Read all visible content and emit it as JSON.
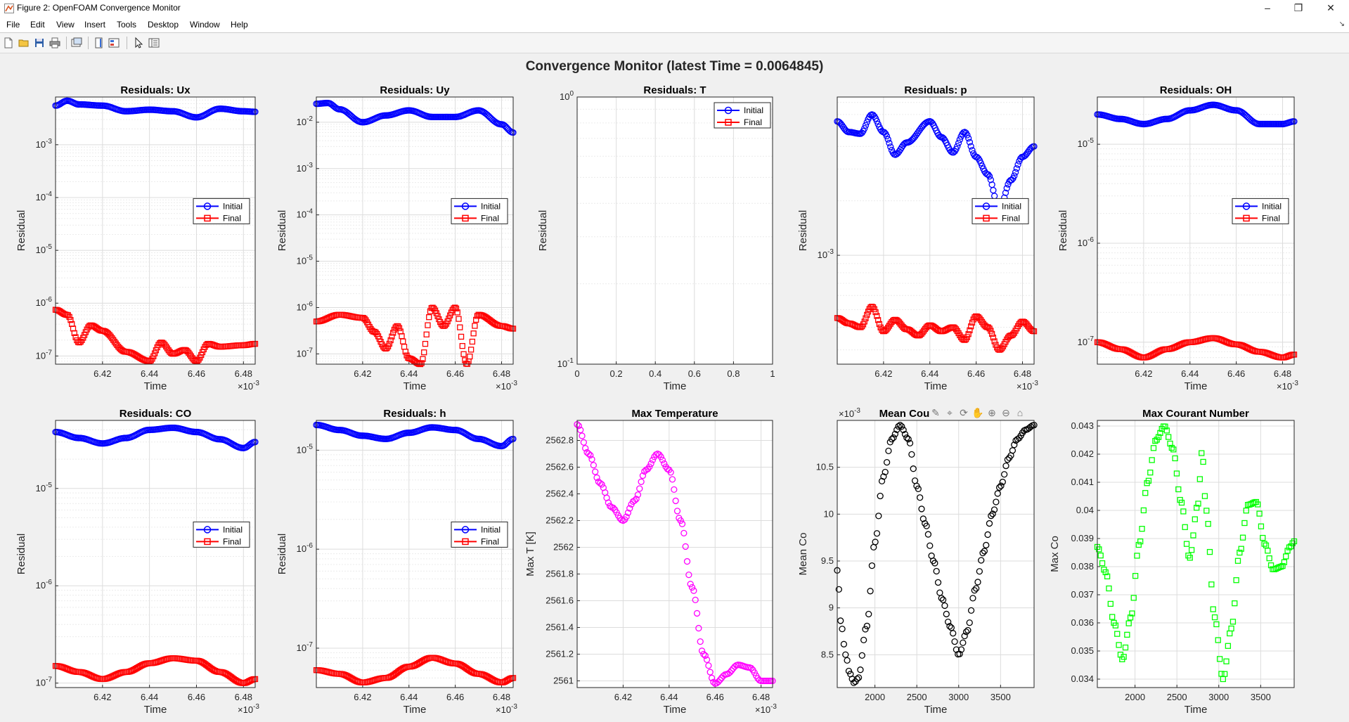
{
  "window": {
    "title": "Figure 2: OpenFOAM Convergence Monitor"
  },
  "menu": [
    "File",
    "Edit",
    "View",
    "Insert",
    "Tools",
    "Desktop",
    "Window",
    "Help"
  ],
  "toolbar_icons": [
    "new-figure-icon",
    "open-file-icon",
    "save-icon",
    "print-icon",
    "link-plot-icon",
    "colorbar-icon",
    "legend-icon",
    "pointer-icon",
    "property-inspector-icon"
  ],
  "figure": {
    "title": "Convergence Monitor (latest Time = 0.0064845)"
  },
  "colors": {
    "initial": "#0000ff",
    "final": "#ff0000",
    "maxT": "#ff00ff",
    "meanCo": "#000000",
    "maxCo": "#00ff00"
  },
  "axes_toolbar_icons": [
    "brush-icon",
    "data-tips-icon",
    "rotate-icon",
    "pan-icon",
    "zoom-in-icon",
    "zoom-out-icon",
    "restore-view-icon"
  ],
  "chart_data": [
    {
      "type": "scatter",
      "title": "Residuals: Ux",
      "xlabel": "Time",
      "ylabel": "Residual",
      "yscale": "log",
      "xlim": [
        6.4,
        6.485
      ],
      "ylim": [
        7e-08,
        0.008
      ],
      "xticks": [
        6.42,
        6.44,
        6.46,
        6.48
      ],
      "xtick_labels": [
        "6.42",
        "6.44",
        "6.46",
        "6.48"
      ],
      "x_exponent": "×10^-3",
      "yticks": [
        1e-07,
        1e-06,
        1e-05,
        0.0001,
        0.001
      ],
      "ytick_labels": [
        "10^-7",
        "10^-6",
        "10^-5",
        "10^-4",
        "10^-3"
      ],
      "legend": [
        "Initial",
        "Final"
      ],
      "legend_position": "right-middle",
      "grid": true,
      "series": [
        {
          "name": "Initial",
          "marker": "o",
          "x": [
            6.4,
            6.405,
            6.41,
            6.42,
            6.43,
            6.44,
            6.45,
            6.46,
            6.47,
            6.48,
            6.485
          ],
          "y": [
            0.0055,
            0.0068,
            0.0058,
            0.0055,
            0.0043,
            0.0046,
            0.0043,
            0.0033,
            0.0048,
            0.0043,
            0.0042
          ]
        },
        {
          "name": "Final",
          "marker": "s",
          "x": [
            6.4,
            6.405,
            6.41,
            6.415,
            6.42,
            6.43,
            6.44,
            6.445,
            6.45,
            6.455,
            6.46,
            6.465,
            6.47,
            6.48,
            6.485
          ],
          "y": [
            7.5e-07,
            6e-07,
            1.8e-07,
            3.8e-07,
            3e-07,
            1.2e-07,
            8e-08,
            1.8e-07,
            1.1e-07,
            1.3e-07,
            8e-08,
            1.7e-07,
            1.5e-07,
            1.6e-07,
            1.7e-07
          ]
        }
      ]
    },
    {
      "type": "scatter",
      "title": "Residuals: Uy",
      "xlabel": "Time",
      "ylabel": "Residual",
      "yscale": "log",
      "xlim": [
        6.4,
        6.485
      ],
      "ylim": [
        6e-08,
        0.035
      ],
      "xticks": [
        6.42,
        6.44,
        6.46,
        6.48
      ],
      "xtick_labels": [
        "6.42",
        "6.44",
        "6.46",
        "6.48"
      ],
      "x_exponent": "×10^-3",
      "yticks": [
        1e-07,
        1e-06,
        1e-05,
        0.0001,
        0.001,
        0.01
      ],
      "ytick_labels": [
        "10^-7",
        "10^-6",
        "10^-5",
        "10^-4",
        "10^-3",
        "10^-2"
      ],
      "legend": [
        "Initial",
        "Final"
      ],
      "legend_position": "right-middle",
      "grid": true,
      "series": [
        {
          "name": "Initial",
          "marker": "o",
          "x": [
            6.4,
            6.405,
            6.41,
            6.42,
            6.43,
            6.44,
            6.45,
            6.46,
            6.47,
            6.48,
            6.485
          ],
          "y": [
            0.025,
            0.026,
            0.019,
            0.01,
            0.014,
            0.018,
            0.013,
            0.013,
            0.018,
            0.009,
            0.006
          ]
        },
        {
          "name": "Final",
          "marker": "s",
          "x": [
            6.4,
            6.41,
            6.42,
            6.425,
            6.43,
            6.435,
            6.44,
            6.445,
            6.45,
            6.455,
            6.46,
            6.465,
            6.47,
            6.48,
            6.485
          ],
          "y": [
            5e-07,
            7e-07,
            6e-07,
            3e-07,
            1.3e-07,
            4e-07,
            8e-08,
            6e-08,
            1e-06,
            4e-07,
            1e-06,
            6e-08,
            7e-07,
            4e-07,
            3.5e-07
          ]
        }
      ]
    },
    {
      "type": "scatter",
      "title": "Residuals: T",
      "xlabel": "Time",
      "ylabel": "Residual",
      "yscale": "log",
      "xlim": [
        0,
        1
      ],
      "ylim": [
        0.1,
        1
      ],
      "xticks": [
        0,
        0.2,
        0.4,
        0.6,
        0.8,
        1
      ],
      "xtick_labels": [
        "0",
        "0.2",
        "0.4",
        "0.6",
        "0.8",
        "1"
      ],
      "yticks": [
        0.1,
        1
      ],
      "ytick_labels": [
        "10^-1",
        "10^0"
      ],
      "legend": [
        "Initial",
        "Final"
      ],
      "legend_position": "top-right",
      "grid": true,
      "series": []
    },
    {
      "type": "scatter",
      "title": "Residuals: p",
      "xlabel": "Time",
      "ylabel": "Residual",
      "yscale": "log",
      "xlim": [
        6.4,
        6.485
      ],
      "ylim": [
        0.00025,
        0.0075
      ],
      "xticks": [
        6.42,
        6.44,
        6.46,
        6.48
      ],
      "xtick_labels": [
        "6.42",
        "6.44",
        "6.46",
        "6.48"
      ],
      "x_exponent": "×10^-3",
      "yticks": [
        0.001
      ],
      "ytick_labels": [
        "10^-3"
      ],
      "legend": [
        "Initial",
        "Final"
      ],
      "legend_position": "right-middle",
      "grid": true,
      "series": [
        {
          "name": "Initial",
          "marker": "o",
          "x": [
            6.4,
            6.405,
            6.41,
            6.415,
            6.42,
            6.425,
            6.43,
            6.44,
            6.445,
            6.45,
            6.455,
            6.46,
            6.465,
            6.47,
            6.475,
            6.48,
            6.485
          ],
          "y": [
            0.0055,
            0.0048,
            0.0047,
            0.006,
            0.0048,
            0.0036,
            0.0042,
            0.0055,
            0.0045,
            0.0037,
            0.0048,
            0.0035,
            0.0028,
            0.0018,
            0.0026,
            0.0035,
            0.004
          ]
        },
        {
          "name": "Final",
          "marker": "s",
          "x": [
            6.4,
            6.405,
            6.41,
            6.415,
            6.42,
            6.425,
            6.43,
            6.435,
            6.44,
            6.445,
            6.45,
            6.455,
            6.46,
            6.465,
            6.47,
            6.475,
            6.48,
            6.485
          ],
          "y": [
            0.00045,
            0.00042,
            0.0004,
            0.00052,
            0.00038,
            0.00044,
            0.00039,
            0.00036,
            0.00041,
            0.00038,
            0.0004,
            0.00034,
            0.00046,
            0.0004,
            0.0003,
            0.00036,
            0.00043,
            0.00038
          ]
        }
      ]
    },
    {
      "type": "scatter",
      "title": "Residuals: OH",
      "xlabel": "Time",
      "ylabel": "Residual",
      "yscale": "log",
      "xlim": [
        6.4,
        6.485
      ],
      "ylim": [
        6e-08,
        3e-05
      ],
      "xticks": [
        6.42,
        6.44,
        6.46,
        6.48
      ],
      "xtick_labels": [
        "6.42",
        "6.44",
        "6.46",
        "6.48"
      ],
      "x_exponent": "×10^-3",
      "yticks": [
        1e-07,
        1e-06,
        1e-05
      ],
      "ytick_labels": [
        "10^-7",
        "10^-6",
        "10^-5"
      ],
      "legend": [
        "Initial",
        "Final"
      ],
      "legend_position": "right-middle",
      "grid": true,
      "series": [
        {
          "name": "Initial",
          "marker": "o",
          "x": [
            6.4,
            6.41,
            6.42,
            6.43,
            6.44,
            6.45,
            6.46,
            6.47,
            6.48,
            6.485
          ],
          "y": [
            2e-05,
            1.8e-05,
            1.6e-05,
            1.8e-05,
            2.2e-05,
            2.5e-05,
            2.2e-05,
            1.6e-05,
            1.6e-05,
            1.7e-05
          ]
        },
        {
          "name": "Final",
          "marker": "s",
          "x": [
            6.4,
            6.41,
            6.42,
            6.43,
            6.44,
            6.45,
            6.46,
            6.47,
            6.48,
            6.485
          ],
          "y": [
            1e-07,
            8.5e-08,
            7e-08,
            8.5e-08,
            1e-07,
            1.1e-07,
            9.5e-08,
            8e-08,
            7e-08,
            7.5e-08
          ]
        }
      ]
    },
    {
      "type": "scatter",
      "title": "Residuals: CO",
      "xlabel": "Time",
      "ylabel": "Residual",
      "yscale": "log",
      "xlim": [
        6.4,
        6.485
      ],
      "ylim": [
        9e-08,
        5e-05
      ],
      "xticks": [
        6.42,
        6.44,
        6.46,
        6.48
      ],
      "xtick_labels": [
        "6.42",
        "6.44",
        "6.46",
        "6.48"
      ],
      "x_exponent": "×10^-3",
      "yticks": [
        1e-07,
        1e-06,
        1e-05
      ],
      "ytick_labels": [
        "10^-7",
        "10^-6",
        "10^-5"
      ],
      "legend": [
        "Initial",
        "Final"
      ],
      "legend_position": "right-middle",
      "grid": true,
      "series": [
        {
          "name": "Initial",
          "marker": "o",
          "x": [
            6.4,
            6.41,
            6.42,
            6.43,
            6.44,
            6.45,
            6.46,
            6.47,
            6.48,
            6.485
          ],
          "y": [
            3.8e-05,
            3.3e-05,
            2.9e-05,
            3.3e-05,
            4e-05,
            4.2e-05,
            3.8e-05,
            3.2e-05,
            2.6e-05,
            3e-05
          ]
        },
        {
          "name": "Final",
          "marker": "s",
          "x": [
            6.4,
            6.41,
            6.42,
            6.43,
            6.44,
            6.45,
            6.46,
            6.47,
            6.48,
            6.485
          ],
          "y": [
            1.5e-07,
            1.3e-07,
            1.1e-07,
            1.3e-07,
            1.6e-07,
            1.8e-07,
            1.7e-07,
            1.3e-07,
            1e-07,
            1.1e-07
          ]
        }
      ]
    },
    {
      "type": "scatter",
      "title": "Residuals: h",
      "xlabel": "Time",
      "ylabel": "Residual",
      "yscale": "log",
      "xlim": [
        6.4,
        6.485
      ],
      "ylim": [
        4e-08,
        2e-05
      ],
      "xticks": [
        6.42,
        6.44,
        6.46,
        6.48
      ],
      "xtick_labels": [
        "6.42",
        "6.44",
        "6.46",
        "6.48"
      ],
      "x_exponent": "×10^-3",
      "yticks": [
        1e-07,
        1e-06,
        1e-05
      ],
      "ytick_labels": [
        "10^-7",
        "10^-6",
        "10^-5"
      ],
      "legend": [
        "Initial",
        "Final"
      ],
      "legend_position": "right-middle",
      "grid": true,
      "series": [
        {
          "name": "Initial",
          "marker": "o",
          "x": [
            6.4,
            6.41,
            6.42,
            6.43,
            6.44,
            6.45,
            6.46,
            6.47,
            6.48,
            6.485
          ],
          "y": [
            1.8e-05,
            1.6e-05,
            1.4e-05,
            1.3e-05,
            1.5e-05,
            1.7e-05,
            1.6e-05,
            1.3e-05,
            1.1e-05,
            1.3e-05
          ]
        },
        {
          "name": "Final",
          "marker": "s",
          "x": [
            6.4,
            6.41,
            6.42,
            6.43,
            6.44,
            6.45,
            6.46,
            6.47,
            6.48,
            6.485
          ],
          "y": [
            6e-08,
            5.5e-08,
            4.5e-08,
            5e-08,
            6.5e-08,
            8e-08,
            7e-08,
            5.5e-08,
            4.5e-08,
            5e-08
          ]
        }
      ]
    },
    {
      "type": "scatter",
      "title": "Max Temperature",
      "xlabel": "Time",
      "ylabel": "Max T [K]",
      "xlim": [
        6.4,
        6.485
      ],
      "ylim": [
        2560.95,
        2562.95
      ],
      "xticks": [
        6.42,
        6.44,
        6.46,
        6.48
      ],
      "xtick_labels": [
        "6.42",
        "6.44",
        "6.46",
        "6.48"
      ],
      "x_exponent": "×10^-3",
      "yticks": [
        2561,
        2561.2,
        2561.4,
        2561.6,
        2561.8,
        2562,
        2562.2,
        2562.4,
        2562.6,
        2562.8
      ],
      "ytick_labels": [
        "2561",
        "2561.2",
        "2561.4",
        "2561.6",
        "2561.8",
        "2562",
        "2562.2",
        "2562.4",
        "2562.6",
        "2562.8"
      ],
      "grid": true,
      "series": [
        {
          "name": "",
          "marker": "o",
          "x": [
            6.4,
            6.405,
            6.41,
            6.415,
            6.42,
            6.425,
            6.43,
            6.435,
            6.44,
            6.445,
            6.45,
            6.455,
            6.46,
            6.465,
            6.47,
            6.475,
            6.48,
            6.485
          ],
          "y": [
            2562.92,
            2562.7,
            2562.48,
            2562.3,
            2562.2,
            2562.35,
            2562.58,
            2562.7,
            2562.58,
            2562.2,
            2561.7,
            2561.2,
            2560.98,
            2561.05,
            2561.12,
            2561.1,
            2561.0,
            2561.0
          ]
        }
      ]
    },
    {
      "type": "scatter",
      "title": "Mean Courant Number",
      "xlabel": "Time",
      "ylabel": "Mean Co",
      "xlim": [
        1550,
        3900
      ],
      "ylim": [
        8.15,
        11.0
      ],
      "y_exponent": "×10^-3",
      "xticks": [
        2000,
        2500,
        3000,
        3500
      ],
      "xtick_labels": [
        "2000",
        "2500",
        "3000",
        "3500"
      ],
      "yticks": [
        8.5,
        9,
        9.5,
        10,
        10.5
      ],
      "ytick_labels": [
        "8.5",
        "9",
        "9.5",
        "10",
        "10.5"
      ],
      "grid": true,
      "series": [
        {
          "name": "",
          "marker": "o",
          "x": [
            1550,
            1600,
            1650,
            1700,
            1750,
            1800,
            1900,
            2000,
            2100,
            2200,
            2300,
            2400,
            2500,
            2600,
            2700,
            2800,
            2900,
            3000,
            3100,
            3200,
            3300,
            3400,
            3500,
            3600,
            3700,
            3800,
            3900
          ],
          "y": [
            9.4,
            8.8,
            8.5,
            8.3,
            8.2,
            8.25,
            8.8,
            9.7,
            10.4,
            10.8,
            10.95,
            10.8,
            10.3,
            9.9,
            9.5,
            9.1,
            8.8,
            8.5,
            8.75,
            9.2,
            9.6,
            10.0,
            10.3,
            10.6,
            10.8,
            10.9,
            10.95
          ]
        }
      ]
    },
    {
      "type": "scatter",
      "title": "Max Courant Number",
      "xlabel": "Time",
      "ylabel": "Max Co",
      "xlim": [
        1550,
        3900
      ],
      "ylim": [
        0.0337,
        0.0432
      ],
      "xticks": [
        2000,
        2500,
        3000,
        3500
      ],
      "xtick_labels": [
        "2000",
        "2500",
        "3000",
        "3500"
      ],
      "yticks": [
        0.034,
        0.035,
        0.036,
        0.037,
        0.038,
        0.039,
        0.04,
        0.041,
        0.042,
        0.043
      ],
      "ytick_labels": [
        "0.034",
        "0.035",
        "0.036",
        "0.037",
        "0.038",
        "0.039",
        "0.04",
        "0.041",
        "0.042",
        "0.043"
      ],
      "grid": true,
      "series": [
        {
          "name": "",
          "marker": "s",
          "x": [
            1550,
            1650,
            1750,
            1850,
            1950,
            2050,
            2150,
            2250,
            2350,
            2450,
            2550,
            2650,
            2750,
            2800,
            2850,
            2950,
            3050,
            3150,
            3250,
            3350,
            3450,
            3550,
            3650,
            3750,
            3850,
            3900
          ],
          "y": [
            0.0387,
            0.0378,
            0.036,
            0.0347,
            0.0362,
            0.0388,
            0.041,
            0.0425,
            0.043,
            0.0422,
            0.0403,
            0.0383,
            0.0402,
            0.0421,
            0.04,
            0.0362,
            0.034,
            0.0358,
            0.0385,
            0.0402,
            0.0403,
            0.0388,
            0.0379,
            0.038,
            0.0387,
            0.0389
          ]
        }
      ]
    }
  ]
}
